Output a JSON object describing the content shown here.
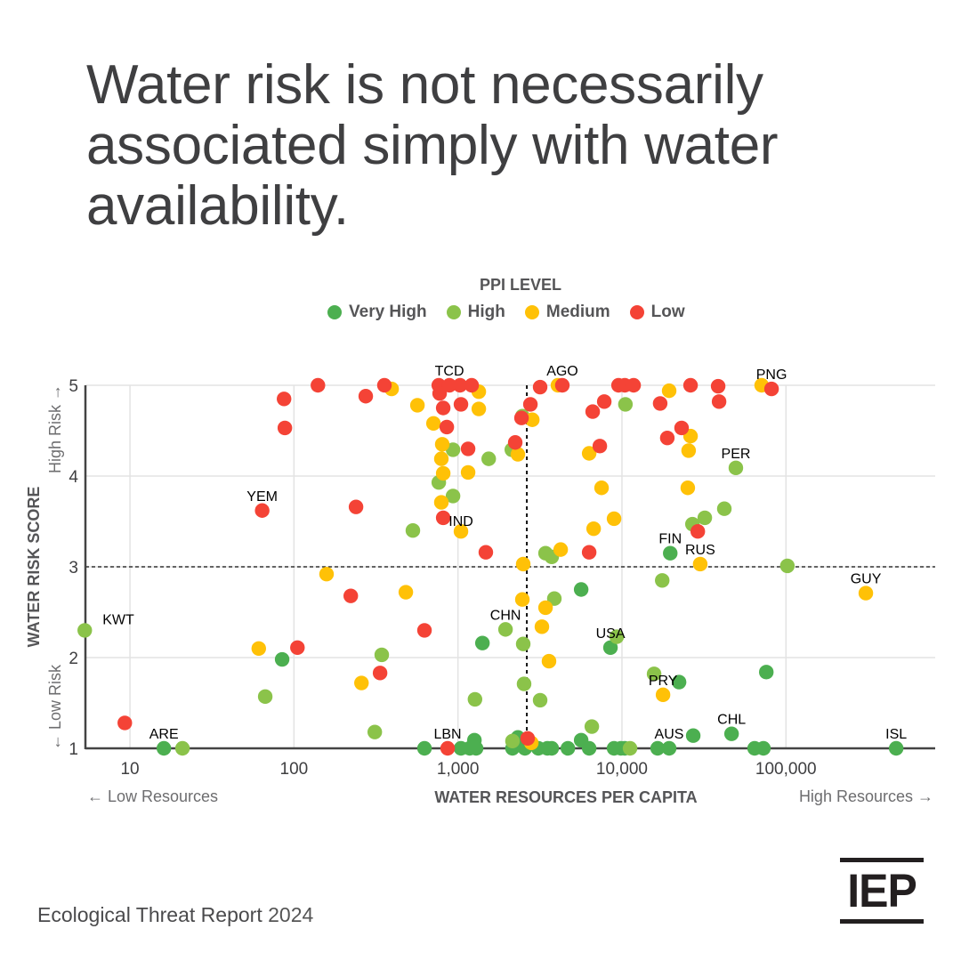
{
  "title": "Water risk is not necessarily associated simply with water availability.",
  "footer": {
    "report": "Ecological Threat Report",
    "year": "2024",
    "logo": "IEP"
  },
  "colors": {
    "very_high": "#4caf50",
    "high": "#8bc34a",
    "medium": "#ffc107",
    "low": "#f44336",
    "text": "#3f3f41",
    "grid": "#e3e3e3",
    "axis": "#444444"
  },
  "chart_data": {
    "type": "scatter",
    "title": "Water risk is not necessarily associated simply with water availability.",
    "legend_title": "PPI LEVEL",
    "legend_placement": "top-center",
    "legend": [
      {
        "key": "very_high",
        "label": "Very High"
      },
      {
        "key": "high",
        "label": "High"
      },
      {
        "key": "medium",
        "label": "Medium"
      },
      {
        "key": "low",
        "label": "Low"
      }
    ],
    "xlabel": "WATER RESOURCES PER CAPITA",
    "ylabel": "WATER RISK SCORE",
    "x_scale": "log",
    "xlim": [
      5.35,
      813000
    ],
    "ylim": [
      1,
      5
    ],
    "x_ticks": [
      {
        "v": 10,
        "label": "10"
      },
      {
        "v": 100,
        "label": "100"
      },
      {
        "v": 1000,
        "label": "1,000"
      },
      {
        "v": 10000,
        "label": "10,000"
      },
      {
        "v": 100000,
        "label": "100,000"
      }
    ],
    "y_ticks": [
      {
        "v": 1,
        "label": "1"
      },
      {
        "v": 2,
        "label": "2"
      },
      {
        "v": 3,
        "label": "3"
      },
      {
        "v": 4,
        "label": "4"
      },
      {
        "v": 5,
        "label": "5"
      }
    ],
    "x_annotations": {
      "low": "← Low Resources",
      "high": "High Resources →"
    },
    "y_annotations": {
      "low": "← Low Risk",
      "high": "High Risk →"
    },
    "grid": true,
    "reference_lines": {
      "x": 2630,
      "y": 3
    },
    "points": [
      {
        "x": 140,
        "y": 5.0,
        "level": "low"
      },
      {
        "x": 274,
        "y": 4.88,
        "level": "low"
      },
      {
        "x": 356,
        "y": 5.0,
        "level": "low"
      },
      {
        "x": 87,
        "y": 4.85,
        "level": "low"
      },
      {
        "x": 88,
        "y": 4.53,
        "level": "low"
      },
      {
        "x": 764,
        "y": 5.0,
        "level": "low"
      },
      {
        "x": 887,
        "y": 5.0,
        "level": "low",
        "label": "TCD"
      },
      {
        "x": 1030,
        "y": 5.0,
        "level": "low"
      },
      {
        "x": 1212,
        "y": 5.0,
        "level": "low"
      },
      {
        "x": 773,
        "y": 4.91,
        "level": "low"
      },
      {
        "x": 813,
        "y": 4.75,
        "level": "low"
      },
      {
        "x": 1043,
        "y": 4.79,
        "level": "low"
      },
      {
        "x": 855,
        "y": 4.54,
        "level": "low"
      },
      {
        "x": 1153,
        "y": 4.3,
        "level": "low"
      },
      {
        "x": 239,
        "y": 3.66,
        "level": "low"
      },
      {
        "x": 813,
        "y": 3.54,
        "level": "low"
      },
      {
        "x": 1479,
        "y": 3.16,
        "level": "low"
      },
      {
        "x": 64,
        "y": 3.62,
        "level": "low",
        "label": "YEM"
      },
      {
        "x": 222,
        "y": 2.68,
        "level": "low"
      },
      {
        "x": 625,
        "y": 2.3,
        "level": "low"
      },
      {
        "x": 105,
        "y": 2.11,
        "level": "low"
      },
      {
        "x": 335,
        "y": 1.83,
        "level": "low"
      },
      {
        "x": 9.3,
        "y": 1.28,
        "level": "low"
      },
      {
        "x": 865,
        "y": 1.0,
        "level": "low",
        "label": "LBN"
      },
      {
        "x": 2660,
        "y": 1.11,
        "level": "low"
      },
      {
        "x": 3170,
        "y": 4.98,
        "level": "low"
      },
      {
        "x": 4330,
        "y": 5.0,
        "level": "low",
        "label": "AGO"
      },
      {
        "x": 2765,
        "y": 4.79,
        "level": "low"
      },
      {
        "x": 2440,
        "y": 4.64,
        "level": "low"
      },
      {
        "x": 2235,
        "y": 4.37,
        "level": "low"
      },
      {
        "x": 9530,
        "y": 5.0,
        "level": "low"
      },
      {
        "x": 10400,
        "y": 5.0,
        "level": "low"
      },
      {
        "x": 11780,
        "y": 5.0,
        "level": "low"
      },
      {
        "x": 7800,
        "y": 4.82,
        "level": "low"
      },
      {
        "x": 6630,
        "y": 4.71,
        "level": "low"
      },
      {
        "x": 7330,
        "y": 4.33,
        "level": "low"
      },
      {
        "x": 6310,
        "y": 3.16,
        "level": "low"
      },
      {
        "x": 26200,
        "y": 5.0,
        "level": "low"
      },
      {
        "x": 38600,
        "y": 4.99,
        "level": "low"
      },
      {
        "x": 39100,
        "y": 4.82,
        "level": "low"
      },
      {
        "x": 17100,
        "y": 4.8,
        "level": "low"
      },
      {
        "x": 23100,
        "y": 4.53,
        "level": "low"
      },
      {
        "x": 18900,
        "y": 4.42,
        "level": "low"
      },
      {
        "x": 81700,
        "y": 4.96,
        "level": "low",
        "label": "PNG"
      },
      {
        "x": 29000,
        "y": 3.39,
        "level": "low"
      },
      {
        "x": 394,
        "y": 4.96,
        "level": "medium"
      },
      {
        "x": 566,
        "y": 4.78,
        "level": "medium"
      },
      {
        "x": 709,
        "y": 4.58,
        "level": "medium"
      },
      {
        "x": 1340,
        "y": 4.93,
        "level": "medium"
      },
      {
        "x": 1340,
        "y": 4.74,
        "level": "medium"
      },
      {
        "x": 802,
        "y": 4.35,
        "level": "medium"
      },
      {
        "x": 792,
        "y": 4.19,
        "level": "medium"
      },
      {
        "x": 813,
        "y": 4.03,
        "level": "medium"
      },
      {
        "x": 1153,
        "y": 4.04,
        "level": "medium"
      },
      {
        "x": 792,
        "y": 3.71,
        "level": "medium"
      },
      {
        "x": 1043,
        "y": 3.39,
        "level": "medium",
        "label": "IND"
      },
      {
        "x": 158,
        "y": 2.92,
        "level": "medium"
      },
      {
        "x": 481,
        "y": 2.72,
        "level": "medium"
      },
      {
        "x": 61,
        "y": 2.1,
        "level": "medium"
      },
      {
        "x": 258,
        "y": 1.72,
        "level": "medium"
      },
      {
        "x": 4070,
        "y": 5.0,
        "level": "medium"
      },
      {
        "x": 2840,
        "y": 4.62,
        "level": "medium"
      },
      {
        "x": 2320,
        "y": 4.24,
        "level": "medium"
      },
      {
        "x": 6310,
        "y": 4.25,
        "level": "medium"
      },
      {
        "x": 19400,
        "y": 4.94,
        "level": "medium"
      },
      {
        "x": 71100,
        "y": 5.0,
        "level": "medium"
      },
      {
        "x": 26200,
        "y": 4.44,
        "level": "medium"
      },
      {
        "x": 25500,
        "y": 4.28,
        "level": "medium"
      },
      {
        "x": 7510,
        "y": 3.87,
        "level": "medium"
      },
      {
        "x": 25200,
        "y": 3.87,
        "level": "medium"
      },
      {
        "x": 8950,
        "y": 3.53,
        "level": "medium"
      },
      {
        "x": 6720,
        "y": 3.42,
        "level": "medium"
      },
      {
        "x": 4230,
        "y": 3.19,
        "level": "medium"
      },
      {
        "x": 2500,
        "y": 3.03,
        "level": "medium"
      },
      {
        "x": 30000,
        "y": 3.03,
        "level": "medium",
        "label": "RUS"
      },
      {
        "x": 2470,
        "y": 2.64,
        "level": "medium"
      },
      {
        "x": 3420,
        "y": 2.55,
        "level": "medium"
      },
      {
        "x": 3250,
        "y": 2.34,
        "level": "medium"
      },
      {
        "x": 3590,
        "y": 1.96,
        "level": "medium"
      },
      {
        "x": 17800,
        "y": 1.59,
        "level": "medium",
        "label": "PRY"
      },
      {
        "x": 2800,
        "y": 1.06,
        "level": "medium"
      },
      {
        "x": 307000,
        "y": 2.71,
        "level": "medium",
        "label": "GUY"
      },
      {
        "x": 933,
        "y": 4.29,
        "level": "high"
      },
      {
        "x": 1540,
        "y": 4.19,
        "level": "high"
      },
      {
        "x": 764,
        "y": 3.93,
        "level": "high"
      },
      {
        "x": 933,
        "y": 3.78,
        "level": "high"
      },
      {
        "x": 531,
        "y": 3.4,
        "level": "high"
      },
      {
        "x": 2470,
        "y": 4.66,
        "level": "high"
      },
      {
        "x": 2130,
        "y": 4.29,
        "level": "high"
      },
      {
        "x": 10500,
        "y": 4.79,
        "level": "high"
      },
      {
        "x": 49500,
        "y": 4.09,
        "level": "high",
        "label": "PER"
      },
      {
        "x": 42100,
        "y": 3.64,
        "level": "high"
      },
      {
        "x": 32000,
        "y": 3.54,
        "level": "high"
      },
      {
        "x": 26900,
        "y": 3.47,
        "level": "high"
      },
      {
        "x": 3420,
        "y": 3.15,
        "level": "high"
      },
      {
        "x": 3730,
        "y": 3.11,
        "level": "high"
      },
      {
        "x": 102000,
        "y": 3.01,
        "level": "high"
      },
      {
        "x": 17600,
        "y": 2.85,
        "level": "high"
      },
      {
        "x": 3870,
        "y": 2.65,
        "level": "high"
      },
      {
        "x": 1950,
        "y": 2.31,
        "level": "high",
        "label": "CHN"
      },
      {
        "x": 2500,
        "y": 2.15,
        "level": "high"
      },
      {
        "x": 9290,
        "y": 2.23,
        "level": "high"
      },
      {
        "x": 15700,
        "y": 1.82,
        "level": "high"
      },
      {
        "x": 2530,
        "y": 1.71,
        "level": "high"
      },
      {
        "x": 3170,
        "y": 1.53,
        "level": "high"
      },
      {
        "x": 343,
        "y": 2.03,
        "level": "high"
      },
      {
        "x": 66.8,
        "y": 1.57,
        "level": "high"
      },
      {
        "x": 1270,
        "y": 1.54,
        "level": "high"
      },
      {
        "x": 311,
        "y": 1.18,
        "level": "high"
      },
      {
        "x": 6550,
        "y": 1.24,
        "level": "high"
      },
      {
        "x": 2150,
        "y": 1.08,
        "level": "high"
      },
      {
        "x": 11200,
        "y": 1.0,
        "level": "high"
      },
      {
        "x": 5.3,
        "y": 2.3,
        "level": "high",
        "label": "KWT"
      },
      {
        "x": 20.9,
        "y": 1.0,
        "level": "high"
      },
      {
        "x": 5640,
        "y": 2.75,
        "level": "very_high"
      },
      {
        "x": 19700,
        "y": 3.15,
        "level": "very_high",
        "label": "FIN"
      },
      {
        "x": 8510,
        "y": 2.11,
        "level": "very_high",
        "label": "USA"
      },
      {
        "x": 1410,
        "y": 2.16,
        "level": "very_high"
      },
      {
        "x": 84.7,
        "y": 1.98,
        "level": "very_high"
      },
      {
        "x": 75900,
        "y": 1.84,
        "level": "very_high"
      },
      {
        "x": 22300,
        "y": 1.73,
        "level": "very_high"
      },
      {
        "x": 27200,
        "y": 1.14,
        "level": "very_high"
      },
      {
        "x": 46600,
        "y": 1.16,
        "level": "very_high",
        "label": "CHL"
      },
      {
        "x": 16.1,
        "y": 1.0,
        "level": "very_high",
        "label": "ARE"
      },
      {
        "x": 625,
        "y": 1.0,
        "level": "very_high"
      },
      {
        "x": 1043,
        "y": 1.0,
        "level": "very_high"
      },
      {
        "x": 1180,
        "y": 1.0,
        "level": "very_high"
      },
      {
        "x": 1260,
        "y": 1.09,
        "level": "very_high"
      },
      {
        "x": 1290,
        "y": 1.0,
        "level": "very_high"
      },
      {
        "x": 2150,
        "y": 1.0,
        "level": "very_high"
      },
      {
        "x": 2320,
        "y": 1.12,
        "level": "very_high"
      },
      {
        "x": 2560,
        "y": 1.0,
        "level": "very_high"
      },
      {
        "x": 3090,
        "y": 1.0,
        "level": "very_high"
      },
      {
        "x": 3510,
        "y": 1.0,
        "level": "very_high"
      },
      {
        "x": 3730,
        "y": 1.0,
        "level": "very_high"
      },
      {
        "x": 4680,
        "y": 1.0,
        "level": "very_high"
      },
      {
        "x": 5640,
        "y": 1.09,
        "level": "very_high"
      },
      {
        "x": 6310,
        "y": 1.0,
        "level": "very_high"
      },
      {
        "x": 8950,
        "y": 1.0,
        "level": "very_high"
      },
      {
        "x": 9850,
        "y": 1.0,
        "level": "very_high"
      },
      {
        "x": 10400,
        "y": 1.0,
        "level": "very_high"
      },
      {
        "x": 16500,
        "y": 1.0,
        "level": "very_high"
      },
      {
        "x": 19400,
        "y": 1.0,
        "level": "very_high",
        "label": "AUS"
      },
      {
        "x": 64400,
        "y": 1.0,
        "level": "very_high"
      },
      {
        "x": 72900,
        "y": 1.0,
        "level": "very_high"
      },
      {
        "x": 470000,
        "y": 1.0,
        "level": "very_high",
        "label": "ISL"
      }
    ]
  }
}
